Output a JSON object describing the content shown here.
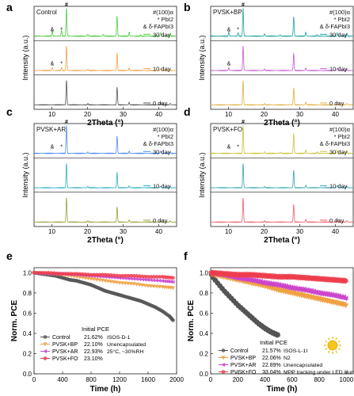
{
  "figure": {
    "xrd_common": {
      "xlabel": "2Theta (°)",
      "ylabel": "Intensity (a.u.)",
      "xticks": [
        10,
        20,
        30,
        40
      ],
      "xlim": [
        5,
        45
      ]
    },
    "pce_common": {
      "ylabel": "Norm. PCE",
      "xlabel": "Time (h)",
      "yticks": [
        "0.0",
        "0.2",
        "0.4",
        "0.6",
        "0.8",
        "1.0"
      ]
    }
  },
  "chart_data": [
    {
      "type": "line",
      "panel": "a",
      "title": "Control",
      "legend": [
        "#(100)α",
        "* PbI2",
        "& δ-FAPbI3"
      ],
      "xlim": [
        5,
        45
      ],
      "xticks": [
        10,
        20,
        30,
        40
      ],
      "xlabel": "2Theta (°)",
      "ylabel": "Intensity (a.u.)",
      "markers": {
        "hash": "#",
        "star": "*",
        "amp": "&"
      },
      "series": [
        {
          "name": "30 day",
          "color": "#4ecb3f",
          "peaks": [
            [
              10.1,
              0.2
            ],
            [
              12.7,
              0.22
            ],
            [
              14.1,
              1.0
            ],
            [
              20.1,
              0.06
            ],
            [
              24.5,
              0.06
            ],
            [
              28.3,
              0.72
            ],
            [
              31.7,
              0.14
            ],
            [
              34.9,
              0.04
            ],
            [
              40.5,
              0.12
            ],
            [
              43.2,
              0.1
            ]
          ]
        },
        {
          "name": "10 day",
          "color": "#f0a040",
          "peaks": [
            [
              10.1,
              0.12
            ],
            [
              12.7,
              0.12
            ],
            [
              14.1,
              1.0
            ],
            [
              20.1,
              0.05
            ],
            [
              28.3,
              0.72
            ],
            [
              31.7,
              0.1
            ],
            [
              40.5,
              0.08
            ],
            [
              43.2,
              0.06
            ]
          ]
        },
        {
          "name": "0 day",
          "color": "#555555",
          "peaks": [
            [
              14.1,
              1.0
            ],
            [
              20.1,
              0.05
            ],
            [
              28.3,
              0.72
            ],
            [
              31.7,
              0.1
            ],
            [
              40.5,
              0.08
            ],
            [
              43.2,
              0.06
            ]
          ]
        }
      ]
    },
    {
      "type": "line",
      "panel": "b",
      "title": "PVSK+BP",
      "legend": [
        "#(100)α",
        "* PbI2",
        "& δ-FAPbI3"
      ],
      "xlim": [
        5,
        45
      ],
      "xticks": [
        10,
        20,
        30,
        40
      ],
      "xlabel": "2Theta (°)",
      "ylabel": "Intensity (a.u.)",
      "markers": {
        "hash": "#",
        "star": "*",
        "amp": "&"
      },
      "series": [
        {
          "name": "30 day",
          "color": "#23a4a4",
          "peaks": [
            [
              10.1,
              0.15
            ],
            [
              12.7,
              0.12
            ],
            [
              14.1,
              1.0
            ],
            [
              20.1,
              0.08
            ],
            [
              24.5,
              0.05
            ],
            [
              28.3,
              0.7
            ],
            [
              31.7,
              0.14
            ],
            [
              34.9,
              0.05
            ],
            [
              40.5,
              0.12
            ],
            [
              43.2,
              0.1
            ]
          ]
        },
        {
          "name": "10 day",
          "color": "#c45ad0",
          "peaks": [
            [
              10.1,
              0.12
            ],
            [
              14.1,
              1.0
            ],
            [
              20.1,
              0.06
            ],
            [
              28.3,
              0.7
            ],
            [
              31.7,
              0.1
            ],
            [
              40.5,
              0.1
            ],
            [
              43.2,
              0.06
            ]
          ]
        },
        {
          "name": "0 day",
          "color": "#e0b040",
          "peaks": [
            [
              14.1,
              1.0
            ],
            [
              20.1,
              0.05
            ],
            [
              28.3,
              0.7
            ],
            [
              31.7,
              0.1
            ],
            [
              40.5,
              0.08
            ],
            [
              43.2,
              0.06
            ]
          ]
        }
      ]
    },
    {
      "type": "line",
      "panel": "c",
      "title": "PVSK+AR",
      "legend": [
        "#(100)α",
        "* PbI2",
        "& δ-FAPbI3"
      ],
      "xlim": [
        5,
        45
      ],
      "xticks": [
        10,
        20,
        30,
        40
      ],
      "xlabel": "2Theta (°)",
      "ylabel": "Intensity (a.u.)",
      "markers": {
        "hash": "#",
        "star": "*",
        "amp": "&"
      },
      "series": [
        {
          "name": "30 day",
          "color": "#4d8ef0",
          "peaks": [
            [
              14.1,
              1.0
            ],
            [
              20.1,
              0.05
            ],
            [
              28.3,
              0.62
            ],
            [
              31.7,
              0.08
            ],
            [
              40.5,
              0.08
            ],
            [
              43.2,
              0.05
            ]
          ]
        },
        {
          "name": "10 day",
          "color": "#2ab0c0",
          "peaks": [
            [
              14.1,
              1.0
            ],
            [
              20.1,
              0.05
            ],
            [
              28.3,
              0.62
            ],
            [
              31.7,
              0.08
            ],
            [
              40.5,
              0.06
            ],
            [
              43.2,
              0.05
            ]
          ]
        },
        {
          "name": "0 day",
          "color": "#9aa13a",
          "peaks": [
            [
              14.1,
              1.0
            ],
            [
              20.1,
              0.05
            ],
            [
              28.3,
              0.62
            ],
            [
              31.7,
              0.08
            ],
            [
              40.5,
              0.06
            ],
            [
              43.2,
              0.05
            ]
          ]
        }
      ]
    },
    {
      "type": "line",
      "panel": "d",
      "title": "PVSK+FO",
      "legend": [
        "#(100)α",
        "* PbI2",
        "& δ-FAPbI3"
      ],
      "xlim": [
        5,
        45
      ],
      "xticks": [
        10,
        20,
        30,
        40
      ],
      "xlabel": "2Theta (°)",
      "ylabel": "Intensity (a.u.)",
      "markers": {
        "hash": "#",
        "star": "*",
        "amp": "&"
      },
      "series": [
        {
          "name": "30 day",
          "color": "#c9c43a",
          "peaks": [
            [
              14.1,
              1.0
            ],
            [
              20.1,
              0.06
            ],
            [
              24.5,
              0.05
            ],
            [
              28.3,
              0.72
            ],
            [
              31.7,
              0.12
            ],
            [
              34.9,
              0.05
            ],
            [
              40.5,
              0.12
            ],
            [
              43.2,
              0.1
            ]
          ]
        },
        {
          "name": "10 day",
          "color": "#3aa6b4",
          "peaks": [
            [
              14.1,
              1.0
            ],
            [
              20.1,
              0.05
            ],
            [
              28.3,
              0.72
            ],
            [
              31.7,
              0.1
            ],
            [
              40.5,
              0.1
            ],
            [
              43.2,
              0.06
            ]
          ]
        },
        {
          "name": "0 day",
          "color": "#ef5f6a",
          "peaks": [
            [
              14.1,
              1.0
            ],
            [
              20.1,
              0.05
            ],
            [
              28.3,
              0.72
            ],
            [
              31.7,
              0.1
            ],
            [
              40.5,
              0.1
            ],
            [
              43.2,
              0.06
            ]
          ]
        }
      ]
    },
    {
      "type": "line",
      "panel": "e",
      "xlabel": "Time (h)",
      "ylabel": "Norm. PCE",
      "xlim": [
        0,
        2000
      ],
      "ylim": [
        0,
        1.05
      ],
      "xticks": [
        0,
        400,
        800,
        1200,
        1600,
        2000
      ],
      "yticks": [
        "0.0",
        "0.2",
        "0.4",
        "0.6",
        "0.8",
        "1.0"
      ],
      "legend_title": "Initial PCE",
      "annotations": [
        "ISOS-D-1",
        "Unencapsulated",
        "25°C, ~30%RH"
      ],
      "series": [
        {
          "name": "Control",
          "pce": "21.62%",
          "color": "#555555",
          "marker": "circle",
          "x": [
            0,
            100,
            200,
            300,
            400,
            500,
            600,
            700,
            800,
            900,
            1000,
            1100,
            1200,
            1300,
            1400,
            1500,
            1600,
            1700,
            1800,
            1900,
            1950
          ],
          "y": [
            1.0,
            0.99,
            0.98,
            0.97,
            0.95,
            0.93,
            0.92,
            0.9,
            0.88,
            0.85,
            0.82,
            0.8,
            0.78,
            0.76,
            0.74,
            0.72,
            0.69,
            0.66,
            0.62,
            0.57,
            0.53
          ]
        },
        {
          "name": "PVSK+BP",
          "pce": "22.10%",
          "color": "#f0a040",
          "marker": "triangle-down",
          "x": [
            0,
            200,
            400,
            600,
            800,
            1000,
            1200,
            1400,
            1600,
            1800,
            1950
          ],
          "y": [
            1.0,
            0.99,
            0.98,
            0.96,
            0.94,
            0.92,
            0.9,
            0.89,
            0.87,
            0.86,
            0.85
          ]
        },
        {
          "name": "PVSK+AR",
          "pce": "22.93%",
          "color": "#cc44cc",
          "marker": "triangle-left",
          "x": [
            0,
            200,
            400,
            600,
            800,
            1000,
            1200,
            1400,
            1600,
            1800,
            1950
          ],
          "y": [
            1.0,
            0.99,
            0.99,
            0.98,
            0.97,
            0.96,
            0.95,
            0.94,
            0.93,
            0.92,
            0.91
          ]
        },
        {
          "name": "PVSK+FO",
          "pce": "23.10%",
          "color": "#ee3d4c",
          "marker": "circle",
          "x": [
            0,
            200,
            400,
            600,
            800,
            1000,
            1200,
            1400,
            1600,
            1800,
            1950
          ],
          "y": [
            1.0,
            1.0,
            0.99,
            0.99,
            0.98,
            0.98,
            0.97,
            0.97,
            0.96,
            0.96,
            0.95
          ]
        }
      ]
    },
    {
      "type": "line",
      "panel": "f",
      "xlabel": "Time (h)",
      "ylabel": "Norm. PCE",
      "xlim": [
        0,
        1050
      ],
      "ylim": [
        0,
        1.05
      ],
      "xticks": [
        0,
        200,
        400,
        600,
        800,
        1000
      ],
      "yticks": [
        "0.0",
        "0.2",
        "0.4",
        "0.6",
        "0.8",
        "1.0"
      ],
      "legend_title": "Initial PCE",
      "annotations": [
        "ISOS-L-1I",
        "N2",
        "Unencapsulated",
        "MPP tracking under LED illumination"
      ],
      "series": [
        {
          "name": "Control",
          "pce": "21.57%",
          "color": "#555555",
          "marker": "circle",
          "x": [
            0,
            50,
            100,
            150,
            200,
            250,
            300,
            350,
            400,
            450,
            500
          ],
          "y": [
            0.98,
            0.9,
            0.82,
            0.75,
            0.68,
            0.62,
            0.56,
            0.5,
            0.45,
            0.41,
            0.38
          ]
        },
        {
          "name": "PVSK+BP",
          "pce": "22.06%",
          "color": "#f0a040",
          "marker": "triangle-down",
          "x": [
            0,
            100,
            200,
            300,
            400,
            500,
            600,
            700,
            800,
            900,
            1000
          ],
          "y": [
            0.99,
            0.96,
            0.93,
            0.9,
            0.87,
            0.83,
            0.8,
            0.77,
            0.74,
            0.71,
            0.68
          ]
        },
        {
          "name": "PVSK+AR",
          "pce": "22.89%",
          "color": "#cc44cc",
          "marker": "triangle-left",
          "x": [
            0,
            100,
            200,
            300,
            400,
            500,
            600,
            700,
            800,
            900,
            1000
          ],
          "y": [
            1.0,
            0.98,
            0.95,
            0.93,
            0.9,
            0.88,
            0.85,
            0.83,
            0.8,
            0.78,
            0.75
          ]
        },
        {
          "name": "PVSK+FO",
          "pce": "23.04%",
          "color": "#ee3d4c",
          "marker": "circle",
          "x": [
            0,
            100,
            200,
            300,
            400,
            500,
            600,
            700,
            800,
            900,
            1000
          ],
          "y": [
            1.0,
            0.99,
            0.98,
            0.98,
            0.97,
            0.96,
            0.96,
            0.95,
            0.94,
            0.93,
            0.92
          ]
        }
      ]
    }
  ]
}
